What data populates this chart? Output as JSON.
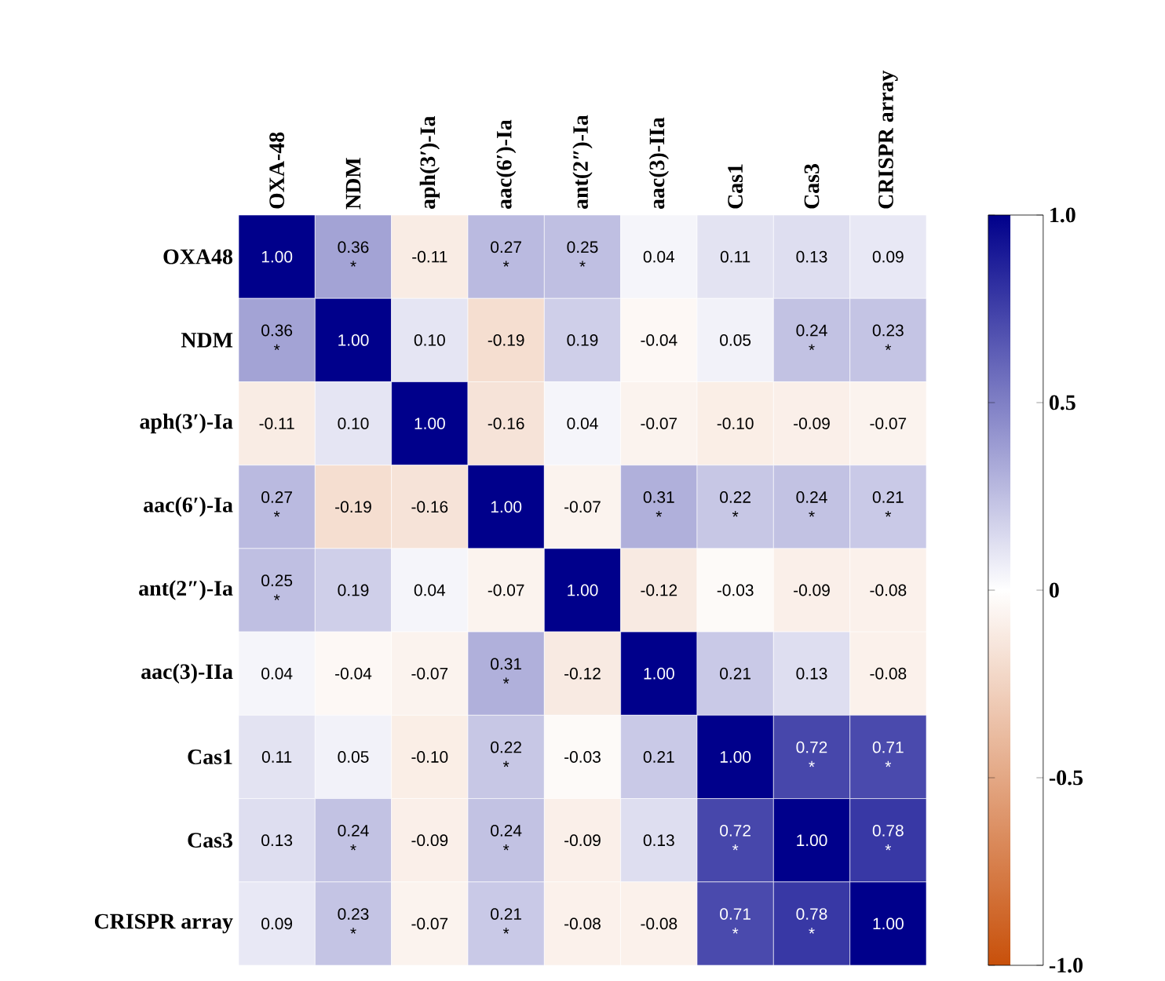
{
  "chart_data": {
    "type": "heatmap",
    "categories": [
      "OXA-48",
      "NDM",
      "aph(3′)-Ia",
      "aac(6′)-Ia",
      "ant(2″)-Ia",
      "aac(3)-IIa",
      "Cas1",
      "Cas3",
      "CRISPR array"
    ],
    "y_categories": [
      "OXA48",
      "NDM",
      "aph(3′)-Ia",
      "aac(6′)-Ia",
      "ant(2″)-Ia",
      "aac(3)-IIa",
      "Cas1",
      "Cas3",
      "CRISPR array"
    ],
    "cells": [
      [
        1.0,
        0.36,
        -0.11,
        0.27,
        0.25,
        0.04,
        0.11,
        0.13,
        0.09
      ],
      [
        0.36,
        1.0,
        0.1,
        -0.19,
        0.19,
        -0.04,
        0.05,
        0.24,
        0.23
      ],
      [
        -0.11,
        0.1,
        1.0,
        -0.16,
        0.04,
        -0.07,
        -0.1,
        -0.09,
        -0.07
      ],
      [
        0.27,
        -0.19,
        -0.16,
        1.0,
        -0.07,
        0.31,
        0.22,
        0.24,
        0.21
      ],
      [
        0.25,
        0.19,
        0.04,
        -0.07,
        1.0,
        -0.12,
        -0.03,
        -0.09,
        -0.08
      ],
      [
        0.04,
        -0.04,
        -0.07,
        0.31,
        -0.12,
        1.0,
        0.21,
        0.13,
        -0.08
      ],
      [
        0.11,
        0.05,
        -0.1,
        0.22,
        -0.03,
        0.21,
        1.0,
        0.72,
        0.71
      ],
      [
        0.13,
        0.24,
        -0.09,
        0.24,
        -0.09,
        0.13,
        0.72,
        1.0,
        0.78
      ],
      [
        0.09,
        0.23,
        -0.07,
        0.21,
        -0.08,
        -0.08,
        0.71,
        0.78,
        1.0
      ]
    ],
    "cell_labels": [
      [
        "1.00",
        "0.36 *",
        "-0.11",
        "0.27 *",
        "0.25 *",
        "0.04",
        "0.11",
        "0.13",
        "0.09"
      ],
      [
        "0.36 *",
        "1.00",
        "0.10",
        "-0.19",
        "0.19",
        "-0.04",
        "0.05",
        "0.24 *",
        "0.23 *"
      ],
      [
        "-0.11",
        "0.10",
        "1.00",
        "-0.16",
        "0.04",
        "-0.07",
        "-0.10",
        "-0.09",
        "-0.07"
      ],
      [
        "0.27 *",
        "-0.19",
        "-0.16",
        "1.00",
        "-0.07",
        "0.31 *",
        "0.22 *",
        "0.24 *",
        "0.21 *"
      ],
      [
        "0.25 *",
        "0.19",
        "0.04",
        "-0.07",
        "1.00",
        "-0.12",
        "-0.03",
        "-0.09",
        "-0.08"
      ],
      [
        "0.04",
        "-0.04",
        "-0.07",
        "0.31 *",
        "-0.12",
        "1.00",
        "0.21",
        "0.13",
        "-0.08"
      ],
      [
        "0.11",
        "0.05",
        "-0.10",
        "0.22 *",
        "-0.03",
        "0.21",
        "1.00",
        "0.72 *",
        "0.71 *"
      ],
      [
        "0.13",
        "0.24 *",
        "-0.09",
        "0.24 *",
        "-0.09",
        "0.13",
        "0.72 *",
        "1.00",
        "0.78 *"
      ],
      [
        "0.09",
        "0.23 *",
        "-0.07",
        "0.21 *",
        "-0.08",
        "-0.08",
        "0.71 *",
        "0.78 *",
        "1.00"
      ]
    ],
    "clim": [
      -1,
      1
    ],
    "cticks": [
      {
        "value": -1,
        "label": "-1.0"
      },
      {
        "value": -0.5,
        "label": "-0.5"
      },
      0,
      {
        "value": 0.5,
        "label": "0.5"
      },
      {
        "value": 1,
        "label": "1.0"
      }
    ]
  }
}
